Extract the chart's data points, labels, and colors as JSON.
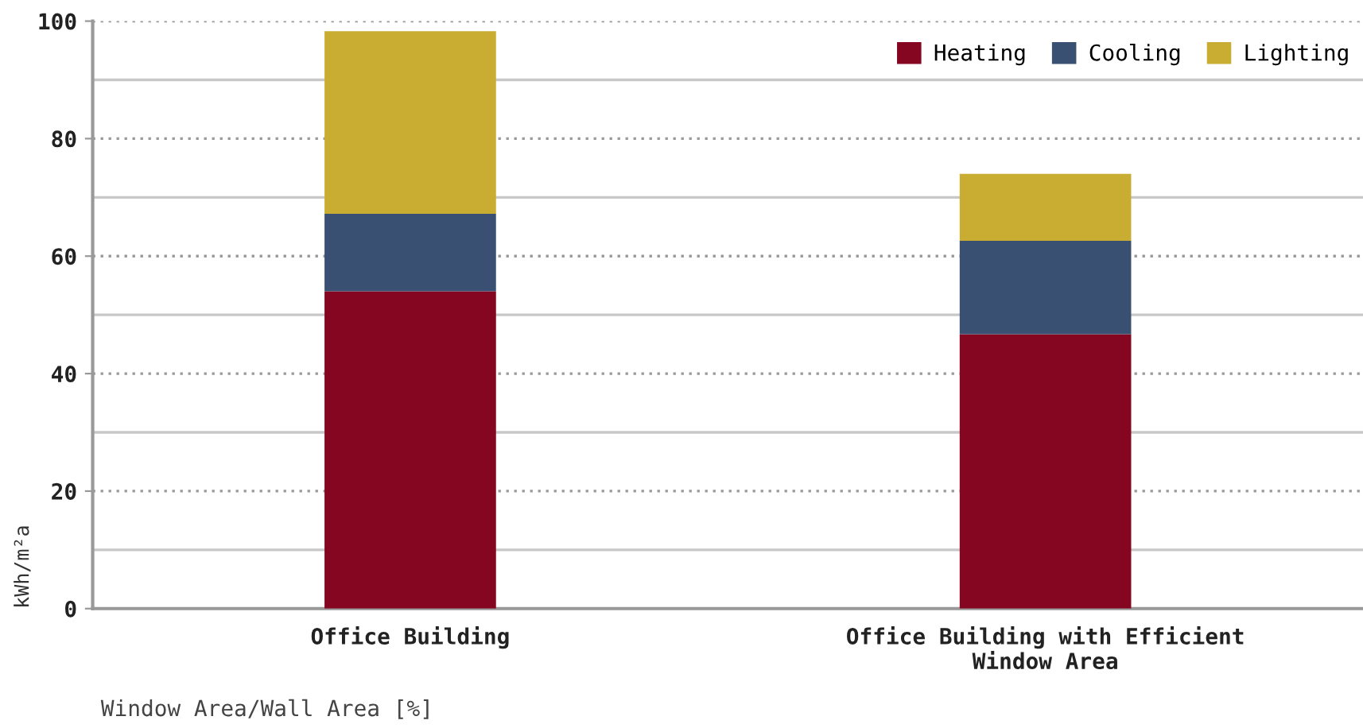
{
  "chart_data": {
    "type": "bar",
    "stacked": true,
    "categories": [
      "Office Building",
      "Office Building with Efficient\nWindow Area"
    ],
    "series": [
      {
        "name": "Heating",
        "color": "#850620",
        "values": [
          54.0,
          46.7
        ]
      },
      {
        "name": "Cooling",
        "color": "#3a5073",
        "values": [
          13.2,
          15.9
        ]
      },
      {
        "name": "Lighting",
        "color": "#c9ad33",
        "values": [
          31.1,
          11.4
        ]
      }
    ],
    "ylabel": "kWh/m²a",
    "xlabel": "Window Area/Wall Area [%]",
    "ylim": [
      0,
      100
    ],
    "yticks": [
      0,
      {
        "value": 10,
        "label": null
      },
      20,
      {
        "value": 30,
        "label": null
      },
      40,
      {
        "value": 50,
        "label": null
      },
      60,
      {
        "value": 70,
        "label": null
      },
      80,
      {
        "value": 90,
        "label": null
      },
      100
    ],
    "grid": "y",
    "legend": "top right"
  }
}
